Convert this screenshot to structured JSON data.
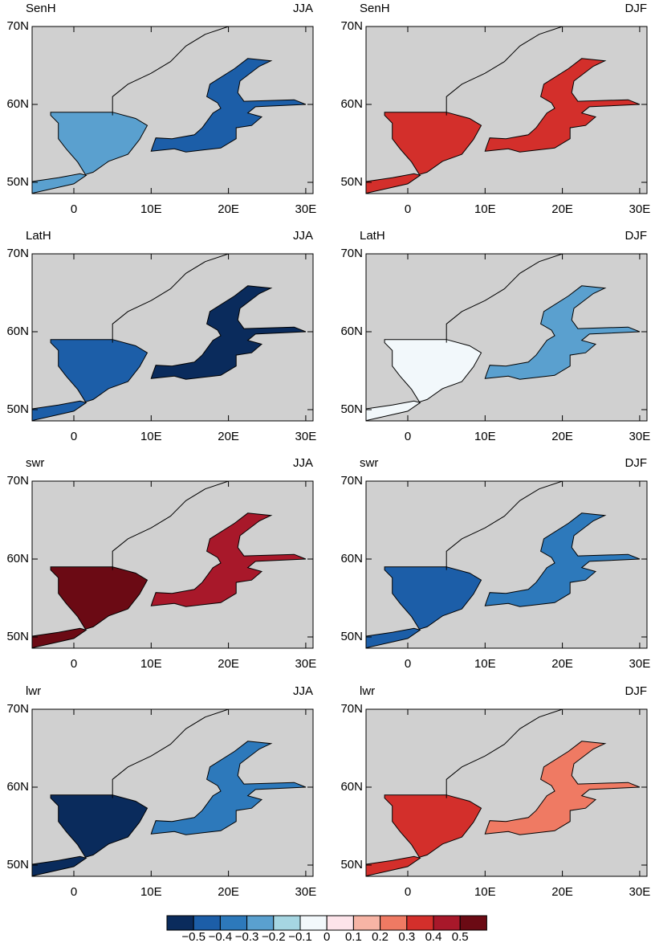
{
  "panels": [
    {
      "variable": "SenH",
      "season": "JJA"
    },
    {
      "variable": "SenH",
      "season": "DJF"
    },
    {
      "variable": "LatH",
      "season": "JJA"
    },
    {
      "variable": "LatH",
      "season": "DJF"
    },
    {
      "variable": "swr",
      "season": "JJA"
    },
    {
      "variable": "swr",
      "season": "DJF"
    },
    {
      "variable": "lwr",
      "season": "JJA"
    },
    {
      "variable": "lwr",
      "season": "DJF"
    }
  ],
  "lat_ticks": [
    "70N",
    "60N",
    "50N"
  ],
  "lon_ticks": [
    "0",
    "10E",
    "20E",
    "30E"
  ],
  "colorbar": {
    "labels": [
      "−0.5",
      "−0.4",
      "−0.3",
      "−0.2",
      "−0.1",
      "0",
      "0.1",
      "0.2",
      "0.3",
      "0.4",
      "0.5"
    ],
    "colors": [
      "#0a2b5c",
      "#1c5ea8",
      "#2d79bb",
      "#5aa0cf",
      "#a6d6e2",
      "#f2f8fb",
      "#fde4ea",
      "#f7b4a5",
      "#ef7a63",
      "#d32f2b",
      "#a8182a",
      "#6b0a14"
    ]
  },
  "land_color": "#d0d0d0"
}
